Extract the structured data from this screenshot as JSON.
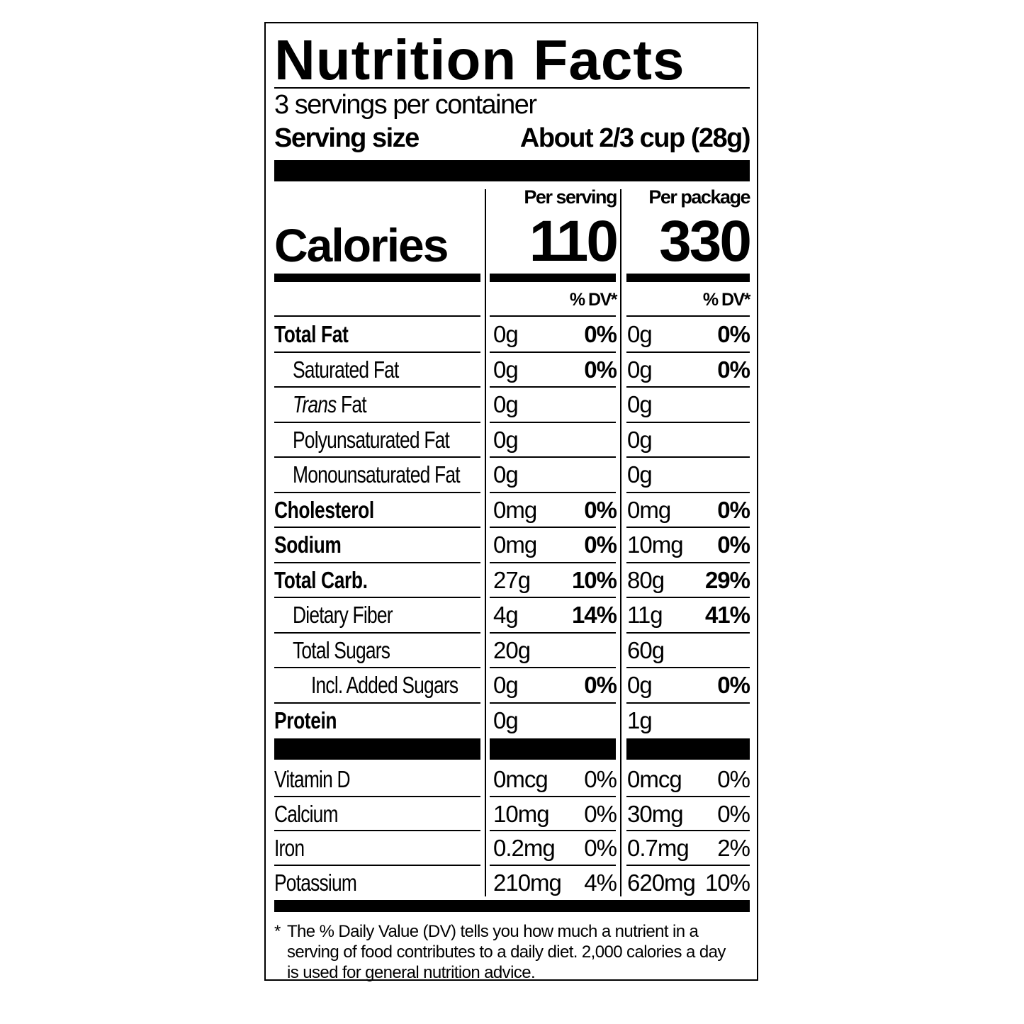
{
  "title": "Nutrition Facts",
  "servings_per_container": "3 servings per container",
  "serving_size_label": "Serving size",
  "serving_size_value": "About 2/3 cup (28g)",
  "columns": {
    "per_serving": "Per serving",
    "per_package": "Per package"
  },
  "calories": {
    "label": "Calories",
    "per_serving": "110",
    "per_package": "330"
  },
  "dv_header": "% DV*",
  "nutrients": [
    {
      "label": "Total Fat",
      "bold": true,
      "indent": 0,
      "serving_amount": "0g",
      "serving_dv": "0%",
      "package_amount": "0g",
      "package_dv": "0%"
    },
    {
      "label": "Saturated Fat",
      "bold": false,
      "indent": 1,
      "serving_amount": "0g",
      "serving_dv": "0%",
      "package_amount": "0g",
      "package_dv": "0%"
    },
    {
      "label_italic": "Trans",
      "label": " Fat",
      "bold": false,
      "indent": 1,
      "serving_amount": "0g",
      "serving_dv": "",
      "package_amount": "0g",
      "package_dv": ""
    },
    {
      "label": "Polyunsaturated Fat",
      "bold": false,
      "indent": 1,
      "serving_amount": "0g",
      "serving_dv": "",
      "package_amount": "0g",
      "package_dv": ""
    },
    {
      "label": "Monounsaturated Fat",
      "bold": false,
      "indent": 1,
      "serving_amount": "0g",
      "serving_dv": "",
      "package_amount": "0g",
      "package_dv": ""
    },
    {
      "label": "Cholesterol",
      "bold": true,
      "indent": 0,
      "serving_amount": "0mg",
      "serving_dv": "0%",
      "package_amount": "0mg",
      "package_dv": "0%"
    },
    {
      "label": "Sodium",
      "bold": true,
      "indent": 0,
      "serving_amount": "0mg",
      "serving_dv": "0%",
      "package_amount": "10mg",
      "package_dv": "0%"
    },
    {
      "label": "Total Carb.",
      "bold": true,
      "indent": 0,
      "serving_amount": "27g",
      "serving_dv": "10%",
      "package_amount": "80g",
      "package_dv": "29%"
    },
    {
      "label": "Dietary Fiber",
      "bold": false,
      "indent": 1,
      "serving_amount": "4g",
      "serving_dv": "14%",
      "package_amount": "11g",
      "package_dv": "41%"
    },
    {
      "label": "Total Sugars",
      "bold": false,
      "indent": 1,
      "serving_amount": "20g",
      "serving_dv": "",
      "package_amount": "60g",
      "package_dv": ""
    },
    {
      "label": "Incl. Added Sugars",
      "bold": false,
      "indent": 2,
      "serving_amount": "0g",
      "serving_dv": "0%",
      "package_amount": "0g",
      "package_dv": "0%"
    },
    {
      "label": "Protein",
      "bold": true,
      "indent": 0,
      "serving_amount": "0g",
      "serving_dv": "",
      "package_amount": "1g",
      "package_dv": ""
    }
  ],
  "vitamins": [
    {
      "label": "Vitamin D",
      "serving_amount": "0mcg",
      "serving_dv": "0%",
      "package_amount": "0mcg",
      "package_dv": "0%"
    },
    {
      "label": "Calcium",
      "serving_amount": "10mg",
      "serving_dv": "0%",
      "package_amount": "30mg",
      "package_dv": "0%"
    },
    {
      "label": "Iron",
      "serving_amount": "0.2mg",
      "serving_dv": "0%",
      "package_amount": "0.7mg",
      "package_dv": "2%"
    },
    {
      "label": "Potassium",
      "serving_amount": "210mg",
      "serving_dv": "4%",
      "package_amount": "620mg",
      "package_dv": "10%"
    }
  ],
  "footnote": {
    "marker": "*",
    "text": "The % Daily Value (DV) tells you how much a nutrient in a serving of food contributes to a daily diet. 2,000 calories a day is used for general nutrition advice."
  }
}
